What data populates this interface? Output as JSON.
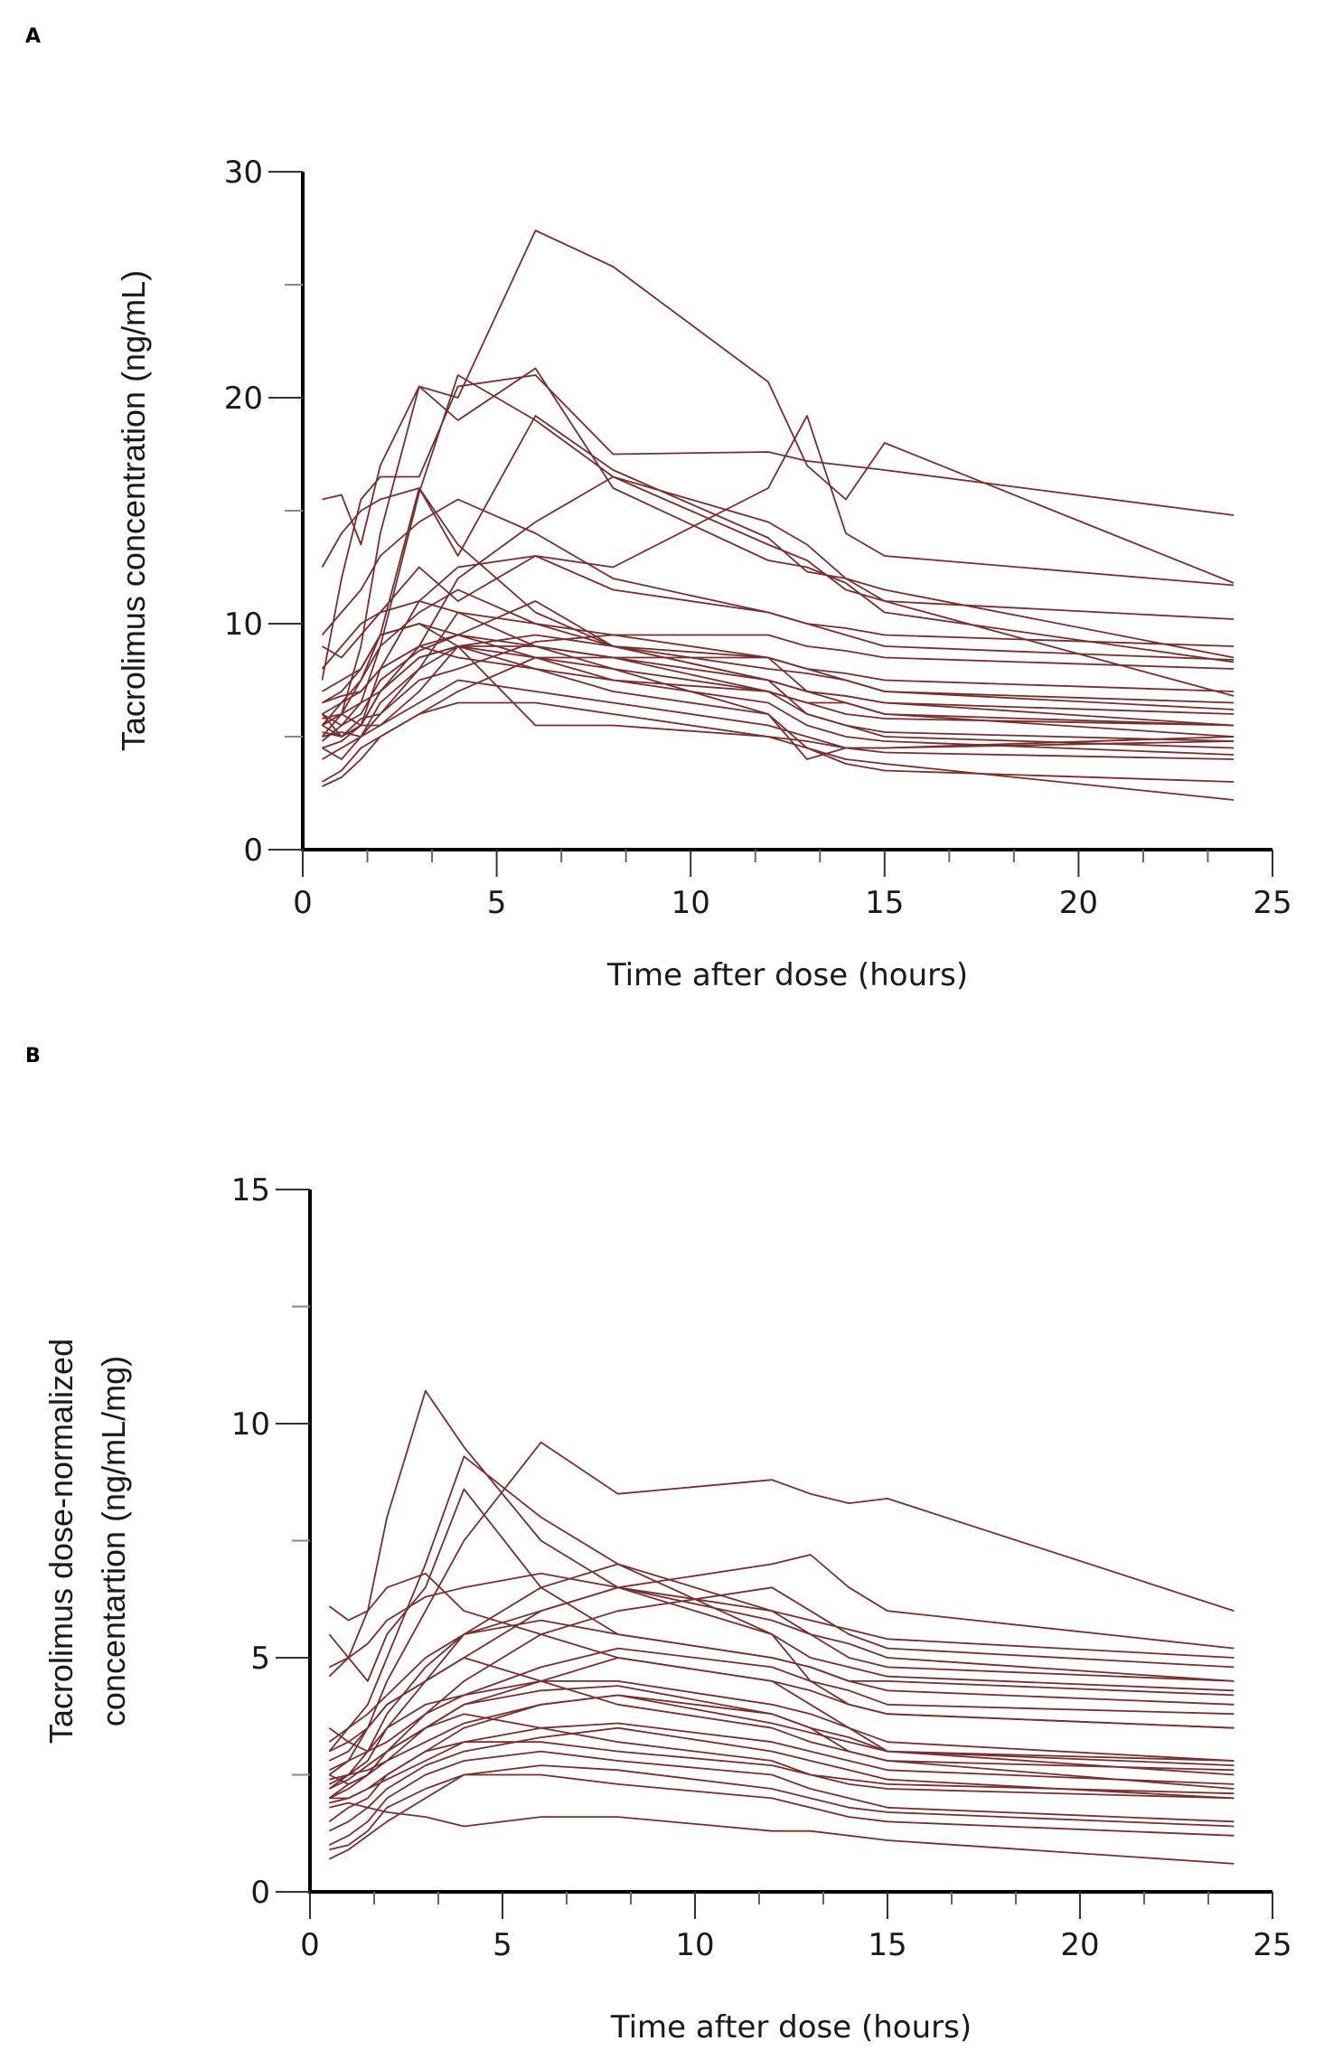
{
  "chart_data": [
    {
      "panel_label": "A",
      "type": "line",
      "xlabel": "Time after dose (hours)",
      "ylabel": "Tacrolimus concentration (ng/mL)",
      "xlim": [
        0,
        25
      ],
      "ylim": [
        0,
        30
      ],
      "xticks": [
        "0",
        "5",
        "10",
        "15",
        "20",
        "25"
      ],
      "yticks": [
        "0",
        "10",
        "20",
        "30"
      ],
      "line_color": "#7a2e2e",
      "x": [
        0.5,
        1,
        1.5,
        2,
        3,
        4,
        6,
        8,
        12,
        13,
        14,
        15,
        24
      ],
      "series": [
        {
          "name": "s1",
          "values": [
            5.5,
            6.0,
            9.0,
            14.0,
            20.5,
            20.0,
            27.4,
            25.8,
            20.7,
            17.0,
            15.5,
            18.0,
            11.8
          ]
        },
        {
          "name": "s2",
          "values": [
            15.5,
            15.7,
            13.5,
            17.0,
            20.5,
            19.0,
            21.3,
            16.0,
            12.8,
            12.5,
            11.8,
            10.5,
            8.3
          ]
        },
        {
          "name": "s3",
          "values": [
            7.5,
            12.0,
            15.5,
            16.5,
            16.5,
            20.5,
            21.0,
            17.5,
            17.6,
            17.2,
            17.0,
            16.8,
            14.8
          ]
        },
        {
          "name": "s4",
          "values": [
            6.0,
            5.5,
            6.5,
            9.0,
            15.8,
            21.0,
            19.0,
            16.5,
            13.5,
            12.8,
            11.5,
            11.0,
            6.8
          ]
        },
        {
          "name": "s5",
          "values": [
            12.5,
            14.0,
            15.0,
            15.5,
            16.0,
            13.5,
            10.5,
            9.0,
            7.5,
            6.0,
            5.5,
            5.2,
            4.8
          ]
        },
        {
          "name": "s6",
          "values": [
            5.0,
            6.0,
            7.5,
            9.5,
            16.0,
            13.0,
            19.2,
            16.8,
            13.8,
            12.3,
            12.0,
            11.5,
            8.5
          ]
        },
        {
          "name": "s7",
          "values": [
            9.0,
            8.5,
            9.5,
            10.5,
            12.5,
            11.0,
            13.0,
            12.5,
            16.0,
            19.2,
            14.0,
            13.0,
            11.7
          ]
        },
        {
          "name": "s8",
          "values": [
            5.5,
            6.0,
            6.5,
            7.0,
            9.0,
            12.0,
            14.5,
            16.5,
            14.5,
            13.5,
            12.0,
            11.0,
            10.2
          ]
        },
        {
          "name": "s9",
          "values": [
            6.0,
            5.0,
            5.5,
            8.0,
            9.0,
            9.5,
            11.0,
            9.0,
            7.5,
            7.0,
            6.8,
            6.5,
            5.5
          ]
        },
        {
          "name": "s10",
          "values": [
            4.5,
            4.8,
            5.5,
            7.0,
            8.5,
            9.0,
            9.5,
            9.0,
            8.5,
            7.0,
            6.5,
            6.0,
            5.0
          ]
        },
        {
          "name": "s11",
          "values": [
            5.0,
            5.2,
            5.0,
            6.0,
            8.0,
            10.5,
            10.0,
            9.0,
            8.0,
            7.8,
            7.5,
            7.0,
            6.2
          ]
        },
        {
          "name": "s12",
          "values": [
            5.8,
            6.0,
            5.5,
            5.5,
            7.0,
            9.0,
            8.5,
            7.5,
            6.5,
            5.5,
            5.0,
            4.8,
            4.2
          ]
        },
        {
          "name": "s13",
          "values": [
            3.0,
            3.5,
            4.5,
            5.0,
            6.0,
            7.0,
            8.5,
            8.0,
            6.0,
            4.5,
            3.8,
            3.5,
            3.0
          ]
        },
        {
          "name": "s14",
          "values": [
            5.5,
            5.0,
            5.8,
            6.0,
            7.5,
            8.0,
            9.2,
            9.5,
            9.5,
            9.0,
            8.8,
            8.5,
            8.0
          ]
        },
        {
          "name": "s15",
          "values": [
            4.0,
            4.5,
            5.0,
            5.5,
            6.5,
            7.5,
            7.0,
            6.5,
            5.5,
            5.0,
            4.5,
            4.3,
            4.0
          ]
        },
        {
          "name": "s16",
          "values": [
            6.5,
            6.8,
            7.0,
            8.0,
            9.0,
            8.5,
            8.0,
            7.0,
            6.0,
            4.0,
            4.5,
            4.5,
            5.0
          ]
        },
        {
          "name": "s17",
          "values": [
            2.8,
            3.2,
            4.0,
            5.0,
            6.0,
            6.5,
            6.5,
            6.0,
            5.0,
            4.5,
            4.0,
            3.8,
            2.2
          ]
        },
        {
          "name": "s18",
          "values": [
            5.2,
            5.0,
            5.5,
            7.0,
            8.5,
            9.0,
            5.5,
            5.5,
            5.0,
            4.8,
            4.5,
            4.5,
            4.8
          ]
        },
        {
          "name": "s19",
          "values": [
            8.0,
            9.0,
            10.0,
            10.5,
            11.0,
            10.5,
            9.0,
            8.0,
            7.0,
            6.5,
            6.5,
            6.0,
            5.5
          ]
        },
        {
          "name": "s20",
          "values": [
            7.0,
            7.5,
            8.0,
            9.5,
            10.0,
            9.5,
            8.5,
            8.5,
            8.5,
            8.0,
            7.5,
            7.0,
            6.5
          ]
        },
        {
          "name": "s21",
          "values": [
            4.8,
            5.5,
            6.0,
            7.5,
            8.8,
            9.5,
            9.0,
            8.5,
            7.5,
            7.0,
            6.8,
            6.5,
            6.0
          ]
        },
        {
          "name": "s22",
          "values": [
            6.0,
            6.5,
            7.0,
            8.0,
            11.0,
            12.5,
            13.0,
            11.5,
            10.5,
            10.0,
            9.8,
            9.5,
            9.0
          ]
        },
        {
          "name": "s23",
          "values": [
            5.5,
            6.5,
            7.5,
            9.0,
            10.5,
            11.5,
            10.0,
            9.5,
            8.5,
            8.0,
            7.8,
            7.5,
            7.0
          ]
        },
        {
          "name": "s24",
          "values": [
            9.5,
            10.5,
            11.5,
            13.0,
            14.5,
            15.5,
            14.0,
            12.0,
            10.5,
            10.0,
            9.5,
            9.0,
            8.4
          ]
        },
        {
          "name": "s25",
          "values": [
            6.5,
            7.0,
            8.0,
            9.5,
            10.0,
            9.0,
            8.0,
            7.5,
            7.0,
            6.5,
            6.0,
            5.8,
            5.5
          ]
        },
        {
          "name": "s26",
          "values": [
            4.5,
            4.0,
            5.0,
            6.5,
            8.0,
            9.0,
            9.0,
            8.5,
            7.0,
            6.0,
            5.5,
            5.0,
            4.5
          ]
        }
      ]
    },
    {
      "panel_label": "B",
      "type": "line",
      "xlabel": "Time after dose (hours)",
      "ylabel": "Tacrolimus dose-normalized concentartion (ng/mL/mg)",
      "ylabel_lines": [
        "Tacrolimus dose-normalized",
        "concentartion (ng/mL/mg)"
      ],
      "xlim": [
        0,
        25
      ],
      "ylim": [
        0,
        15
      ],
      "xticks": [
        "0",
        "5",
        "10",
        "15",
        "20",
        "25"
      ],
      "yticks": [
        "0",
        "5",
        "10",
        "15"
      ],
      "line_color": "#7a2e2e",
      "x": [
        0.5,
        1,
        1.5,
        2,
        3,
        4,
        6,
        8,
        12,
        13,
        14,
        15,
        24
      ],
      "series": [
        {
          "name": "s1",
          "values": [
            4.6,
            5.0,
            6.0,
            8.0,
            10.7,
            9.5,
            7.5,
            6.5,
            5.5,
            4.5,
            4.0,
            3.8,
            3.5
          ]
        },
        {
          "name": "s2",
          "values": [
            2.5,
            2.8,
            3.5,
            4.5,
            6.0,
            7.5,
            9.6,
            8.5,
            8.8,
            8.5,
            8.3,
            8.4,
            6.0
          ]
        },
        {
          "name": "s3",
          "values": [
            3.0,
            3.5,
            4.0,
            5.0,
            7.0,
            9.3,
            8.0,
            7.0,
            6.0,
            5.5,
            5.0,
            4.8,
            4.5
          ]
        },
        {
          "name": "s4",
          "values": [
            5.5,
            5.0,
            4.5,
            5.5,
            6.5,
            8.6,
            6.5,
            5.5,
            5.0,
            4.8,
            4.5,
            4.5,
            4.2
          ]
        },
        {
          "name": "s5",
          "values": [
            6.1,
            5.8,
            6.0,
            6.5,
            6.8,
            6.0,
            5.5,
            5.0,
            4.5,
            4.3,
            4.0,
            3.8,
            3.5
          ]
        },
        {
          "name": "s6",
          "values": [
            2.2,
            2.5,
            3.0,
            3.8,
            4.8,
            5.5,
            6.0,
            6.5,
            7.0,
            7.2,
            6.5,
            6.0,
            5.2
          ]
        },
        {
          "name": "s7",
          "values": [
            2.0,
            2.3,
            2.5,
            3.0,
            3.8,
            4.5,
            5.5,
            6.0,
            6.5,
            6.0,
            5.5,
            5.2,
            4.8
          ]
        },
        {
          "name": "s8",
          "values": [
            2.8,
            3.0,
            3.5,
            4.0,
            4.5,
            5.0,
            6.0,
            6.5,
            5.8,
            5.5,
            5.3,
            5.0,
            4.5
          ]
        },
        {
          "name": "s9",
          "values": [
            3.5,
            3.2,
            3.0,
            3.5,
            4.0,
            4.2,
            4.5,
            4.5,
            4.0,
            3.8,
            3.5,
            3.2,
            2.8
          ]
        },
        {
          "name": "s10",
          "values": [
            2.0,
            2.2,
            2.5,
            2.8,
            3.5,
            4.0,
            4.5,
            5.0,
            4.5,
            4.0,
            3.5,
            3.0,
            2.5
          ]
        },
        {
          "name": "s11",
          "values": [
            1.5,
            1.8,
            2.0,
            2.5,
            3.0,
            3.5,
            4.0,
            4.2,
            3.8,
            3.5,
            3.0,
            2.8,
            2.2
          ]
        },
        {
          "name": "s12",
          "values": [
            2.5,
            2.3,
            2.5,
            3.0,
            3.5,
            3.8,
            3.5,
            3.2,
            2.8,
            2.5,
            2.3,
            2.2,
            2.0
          ]
        },
        {
          "name": "s13",
          "values": [
            1.0,
            1.2,
            1.5,
            2.0,
            2.5,
            2.8,
            3.0,
            2.8,
            2.5,
            2.2,
            2.0,
            1.8,
            1.5
          ]
        },
        {
          "name": "s14",
          "values": [
            0.7,
            0.9,
            1.2,
            1.5,
            2.0,
            2.5,
            2.5,
            2.3,
            2.0,
            1.8,
            1.6,
            1.5,
            1.2
          ]
        },
        {
          "name": "s15",
          "values": [
            1.8,
            1.9,
            1.8,
            1.7,
            1.6,
            1.4,
            1.6,
            1.6,
            1.3,
            1.3,
            1.2,
            1.1,
            0.6
          ]
        },
        {
          "name": "s16",
          "values": [
            2.3,
            2.5,
            2.8,
            3.5,
            4.5,
            5.0,
            4.5,
            4.0,
            3.5,
            3.2,
            3.0,
            2.8,
            2.6
          ]
        },
        {
          "name": "s17",
          "values": [
            3.2,
            3.5,
            3.8,
            4.2,
            5.0,
            5.5,
            5.8,
            5.5,
            5.0,
            4.8,
            4.5,
            4.3,
            4.0
          ]
        },
        {
          "name": "s18",
          "values": [
            2.0,
            2.0,
            2.2,
            2.5,
            3.0,
            3.2,
            3.2,
            3.0,
            2.7,
            2.5,
            2.4,
            2.3,
            2.1
          ]
        },
        {
          "name": "s19",
          "values": [
            2.6,
            2.8,
            3.0,
            3.2,
            3.8,
            4.2,
            4.8,
            5.2,
            4.8,
            4.5,
            4.3,
            4.0,
            3.8
          ]
        },
        {
          "name": "s20",
          "values": [
            0.9,
            1.0,
            1.3,
            1.8,
            2.2,
            2.5,
            2.7,
            2.6,
            2.2,
            2.0,
            1.8,
            1.7,
            1.4
          ]
        },
        {
          "name": "s21",
          "values": [
            3.0,
            3.2,
            3.5,
            4.0,
            4.5,
            5.5,
            6.5,
            7.0,
            5.5,
            5.0,
            4.8,
            4.6,
            4.3
          ]
        },
        {
          "name": "s22",
          "values": [
            2.2,
            2.4,
            2.7,
            3.0,
            3.5,
            4.0,
            4.3,
            4.4,
            3.8,
            3.5,
            3.3,
            3.0,
            2.7
          ]
        },
        {
          "name": "s23",
          "values": [
            1.3,
            1.5,
            1.8,
            2.2,
            2.7,
            3.0,
            3.3,
            3.5,
            3.0,
            2.8,
            2.6,
            2.4,
            2.0
          ]
        },
        {
          "name": "s24",
          "values": [
            4.8,
            5.0,
            5.3,
            5.8,
            6.3,
            6.5,
            6.8,
            6.5,
            6.0,
            5.8,
            5.6,
            5.4,
            5.0
          ]
        },
        {
          "name": "s25",
          "values": [
            2.4,
            2.5,
            2.6,
            2.8,
            3.2,
            3.6,
            4.0,
            4.2,
            3.6,
            3.4,
            3.2,
            3.0,
            2.8
          ]
        },
        {
          "name": "s26",
          "values": [
            1.9,
            2.0,
            2.2,
            2.4,
            2.8,
            3.2,
            3.5,
            3.6,
            3.2,
            3.0,
            2.8,
            2.6,
            2.3
          ]
        }
      ]
    }
  ]
}
